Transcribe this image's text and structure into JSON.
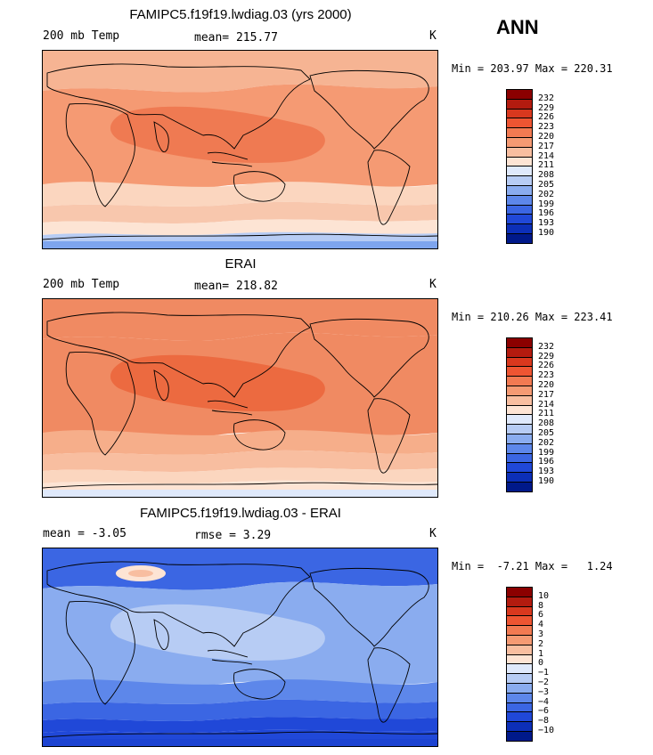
{
  "season": "ANN",
  "panels": [
    {
      "title": "FAMIPC5.f19f19.lwdiag.03 (yrs 2000)",
      "left_label": "200 mb Temp",
      "mid_label": "mean= 215.77",
      "units": "K",
      "minmax": "Min = 203.97 Max = 220.31",
      "levels": [
        "232",
        "229",
        "226",
        "223",
        "220",
        "217",
        "214",
        "211",
        "208",
        "205",
        "202",
        "199",
        "196",
        "193",
        "190"
      ],
      "colors": [
        "#8b0000",
        "#b31b0f",
        "#d9381e",
        "#ee5532",
        "#f27a52",
        "#f59a73",
        "#f8bea0",
        "#fde4d4",
        "#dfe9fb",
        "#b7ccf4",
        "#8aacef",
        "#5d87ea",
        "#3b66e3",
        "#2048d8",
        "#0c2fb8",
        "#00198a"
      ],
      "fields": {
        "north": "#f6b493",
        "tropics": "#f59a73",
        "core": "#ef7a52",
        "band": "#fbd6bf",
        "south1": "#f8c7ad",
        "south2": "#fde4d4",
        "south3": "#b7ccf4",
        "pole": "#7ea5ee"
      }
    },
    {
      "title": "ERAI",
      "left_label": "200 mb Temp",
      "mid_label": "mean= 218.82",
      "units": "K",
      "minmax": "Min = 210.26 Max = 223.41",
      "levels": [
        "232",
        "229",
        "226",
        "223",
        "220",
        "217",
        "214",
        "211",
        "208",
        "205",
        "202",
        "199",
        "196",
        "193",
        "190"
      ],
      "colors": [
        "#8b0000",
        "#b31b0f",
        "#d9381e",
        "#ee5532",
        "#f27a52",
        "#f59a73",
        "#f8bea0",
        "#fde4d4",
        "#dfe9fb",
        "#b7ccf4",
        "#8aacef",
        "#5d87ea",
        "#3b66e3",
        "#2048d8",
        "#0c2fb8",
        "#00198a"
      ],
      "fields": {
        "north": "#f08a62",
        "tropics": "#f08a62",
        "core": "#ec6a40",
        "band": "#f6ae8a",
        "south1": "#f8bea0",
        "south2": "#fbd6bf",
        "south3": "#fde4d4",
        "pole": "#dfe9fb"
      }
    },
    {
      "title": "FAMIPC5.f19f19.lwdiag.03 - ERAI",
      "left_label": "mean =   -3.05",
      "mid_label": "rmse =    3.29",
      "units": "K",
      "minmax": "Min =  -7.21 Max =   1.24",
      "levels": [
        "10",
        "8",
        "6",
        "4",
        "3",
        "2",
        "1",
        "0",
        "−1",
        "−2",
        "−3",
        "−4",
        "−6",
        "−8",
        "−10"
      ],
      "colors": [
        "#8b0000",
        "#b31b0f",
        "#d9381e",
        "#ee5532",
        "#f27a52",
        "#f59a73",
        "#f8bea0",
        "#fde4d4",
        "#dfe9fb",
        "#b7ccf4",
        "#8aacef",
        "#5d87ea",
        "#3b66e3",
        "#2048d8",
        "#0c2fb8",
        "#00198a"
      ],
      "fields": {
        "north": "#3b66e3",
        "tropics": "#8aacef",
        "core": "#b7ccf4",
        "band": "#5d87ea",
        "south1": "#3b66e3",
        "south2": "#2048d8",
        "south3": "#2048d8",
        "pole": "#1d44d2"
      }
    }
  ]
}
